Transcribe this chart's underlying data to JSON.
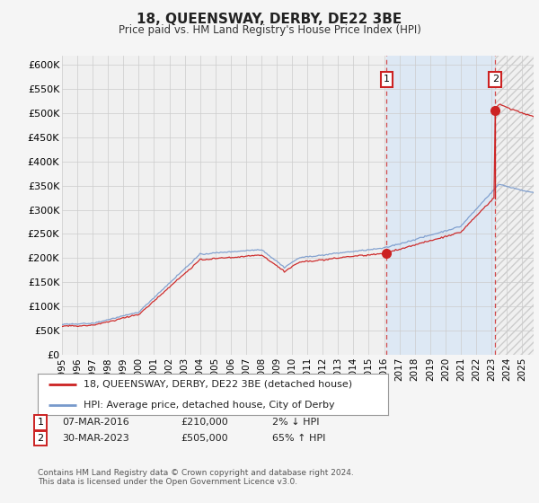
{
  "title": "18, QUEENSWAY, DERBY, DE22 3BE",
  "subtitle": "Price paid vs. HM Land Registry's House Price Index (HPI)",
  "ylabel_ticks": [
    "£0",
    "£50K",
    "£100K",
    "£150K",
    "£200K",
    "£250K",
    "£300K",
    "£350K",
    "£400K",
    "£450K",
    "£500K",
    "£550K",
    "£600K"
  ],
  "ytick_values": [
    0,
    50000,
    100000,
    150000,
    200000,
    250000,
    300000,
    350000,
    400000,
    450000,
    500000,
    550000,
    600000
  ],
  "ylim": [
    0,
    620000
  ],
  "background_color": "#f5f5f5",
  "plot_bg_color": "#f0f0f0",
  "grid_color": "#cccccc",
  "red_line_color": "#cc2222",
  "blue_line_color": "#7799cc",
  "vline_color": "#cc2222",
  "shade_color": "#dde8f4",
  "marker1_year": 2016.17,
  "marker1_value": 210000,
  "marker2_year": 2023.25,
  "marker2_value": 505000,
  "legend_line1": "18, QUEENSWAY, DERBY, DE22 3BE (detached house)",
  "legend_line2": "HPI: Average price, detached house, City of Derby",
  "footer": "Contains HM Land Registry data © Crown copyright and database right 2024.\nThis data is licensed under the Open Government Licence v3.0.",
  "xstart_year": 1995.0,
  "xend_year": 2025.75
}
